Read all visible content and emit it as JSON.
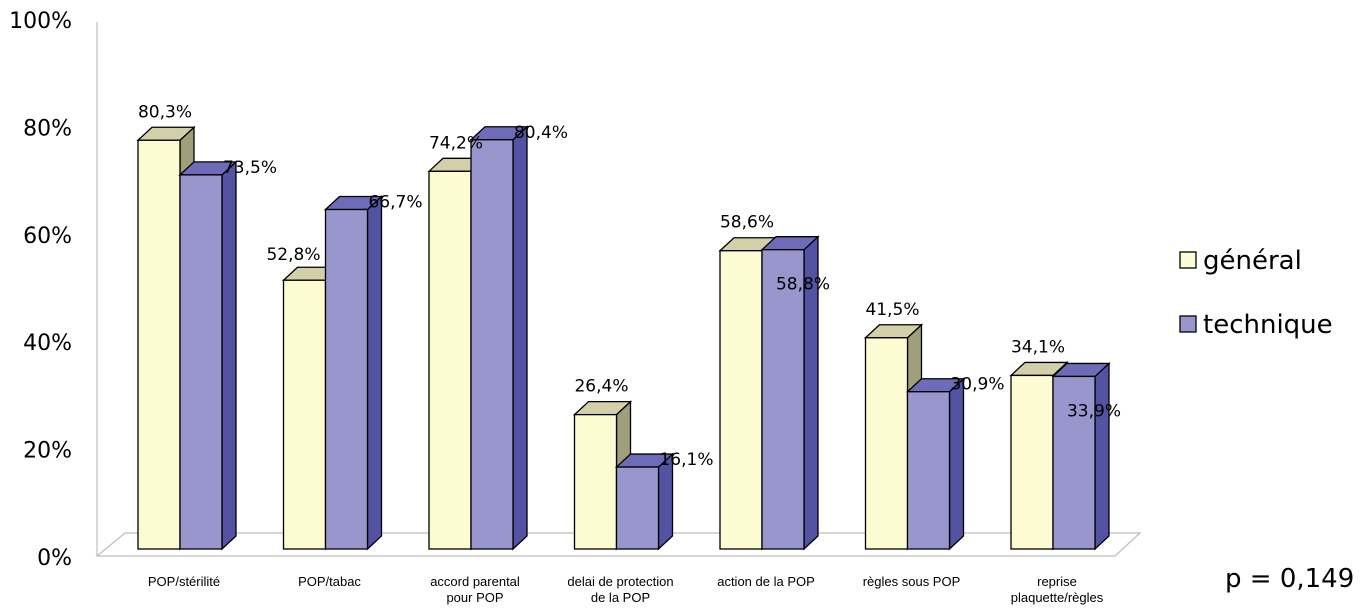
{
  "chart_data": {
    "type": "bar",
    "style": "3d-clustered-column",
    "categories": [
      [
        "POP/stérilité"
      ],
      [
        "POP/tabac"
      ],
      [
        "accord parental",
        "pour POP"
      ],
      [
        "delai de protection",
        "de la POP"
      ],
      [
        "action de la POP"
      ],
      [
        "règles sous POP"
      ],
      [
        "reprise",
        "plaquette/règles"
      ]
    ],
    "series": [
      {
        "name": "général",
        "values": [
          80.3,
          52.8,
          74.2,
          26.4,
          58.6,
          41.5,
          34.1
        ],
        "labels": [
          "80,3%",
          "52,8%",
          "74,2%",
          "26,4%",
          "58,6%",
          "41,5%",
          "34,1%"
        ],
        "color": "#fdfbd2",
        "side_color": "#a19e7c",
        "top_color": "#d2cfa9"
      },
      {
        "name": "technique",
        "values": [
          73.5,
          66.7,
          80.4,
          16.1,
          58.8,
          30.9,
          33.9
        ],
        "labels": [
          "73,5%",
          "66,7%",
          "80,4%",
          "16,1%",
          "58,8%",
          "30,9%",
          "33,9%"
        ],
        "color": "#9896cc",
        "side_color": "#5452a2",
        "top_color": "#6e6cb8"
      }
    ],
    "y_ticks": [
      "0%",
      "20%",
      "40%",
      "60%",
      "80%",
      "100%"
    ],
    "ylim": [
      0,
      100
    ],
    "grid": false,
    "legend_position": "right"
  },
  "annotation": "p = 0,149"
}
